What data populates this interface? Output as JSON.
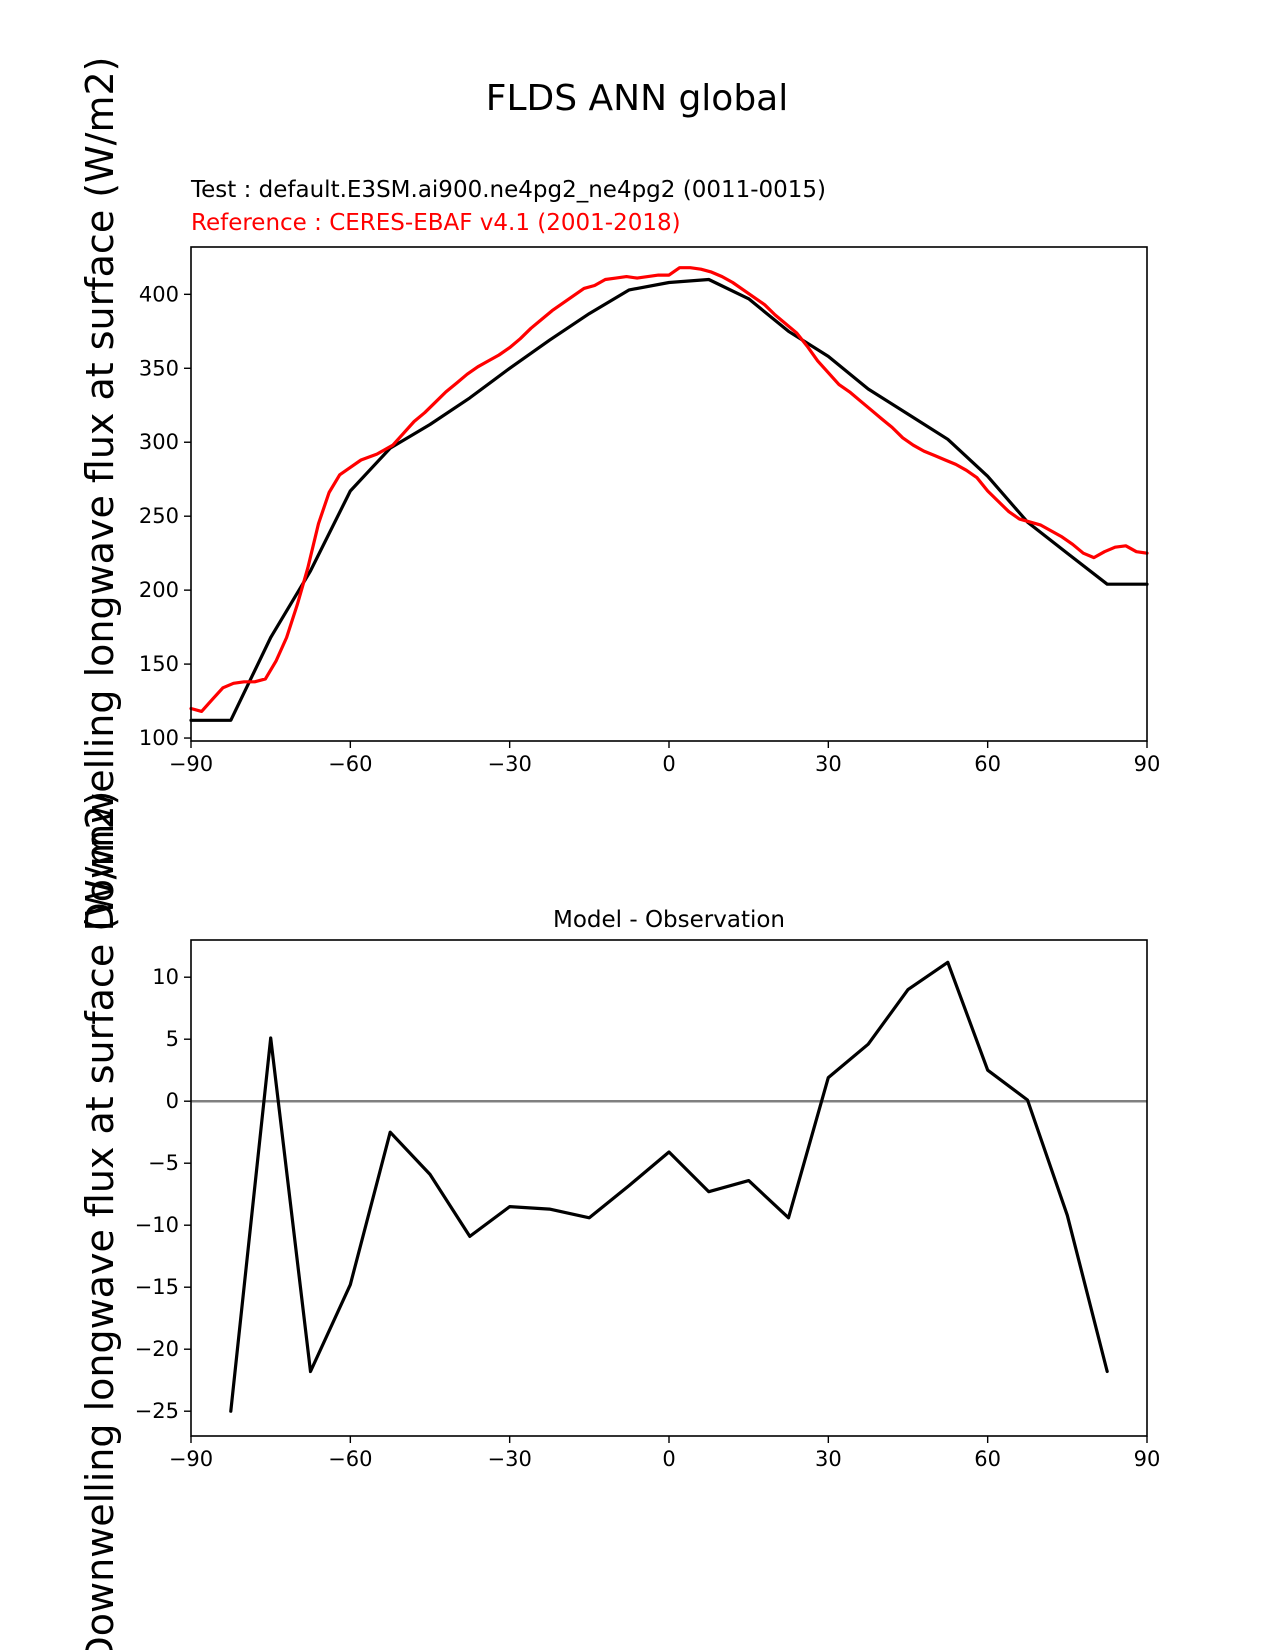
{
  "figure": {
    "title": "FLDS ANN global"
  },
  "chart_data": [
    {
      "type": "line",
      "test_label": "Test : default.E3SM.ai900.ne4pg2_ne4pg2 (0011-0015)",
      "reference_label": "Reference : CERES-EBAF v4.1 (2001-2018)",
      "ylabel": "Downwelling longwave flux at surface (W/m2)",
      "xlim": [
        -90,
        90
      ],
      "ylim": [
        98,
        432
      ],
      "xticks": [
        -90,
        -60,
        -30,
        0,
        30,
        60,
        90
      ],
      "xtick_labels": [
        "−90",
        "−60",
        "−30",
        "0",
        "30",
        "60",
        "90"
      ],
      "yticks": [
        100,
        150,
        200,
        250,
        300,
        350,
        400
      ],
      "ytick_labels": [
        "100",
        "150",
        "200",
        "250",
        "300",
        "350",
        "400"
      ],
      "grid": false,
      "series": [
        {
          "color": "#000000",
          "x": [
            -90,
            -82.5,
            -75,
            -67.5,
            -60,
            -52.5,
            -45,
            -37.5,
            -30,
            -22.5,
            -15,
            -7.5,
            0,
            7.5,
            15,
            22.5,
            30,
            37.5,
            45,
            52.5,
            60,
            67.5,
            75,
            82.5,
            90
          ],
          "y": [
            112,
            112,
            168,
            213,
            267,
            296,
            312,
            330,
            350,
            369,
            387,
            403,
            408,
            410,
            397,
            375,
            358,
            336,
            319,
            302,
            277,
            246,
            225,
            204,
            204
          ]
        },
        {
          "color": "#ff0000",
          "x": [
            -90,
            -88,
            -86,
            -84,
            -82,
            -80,
            -78,
            -76,
            -74,
            -72,
            -70,
            -68,
            -66,
            -64,
            -62,
            -60,
            -58,
            -55,
            -52,
            -50,
            -48,
            -46,
            -44,
            -42,
            -40,
            -38,
            -36,
            -34,
            -32,
            -30,
            -28,
            -26,
            -24,
            -22,
            -20,
            -18,
            -16,
            -14,
            -12,
            -10,
            -8,
            -6,
            -4,
            -2,
            0,
            2,
            4,
            6,
            8,
            10,
            12,
            14,
            16,
            18,
            20,
            22,
            24,
            26,
            28,
            30,
            32,
            34,
            36,
            38,
            40,
            42,
            44,
            46,
            48,
            50,
            52,
            54,
            56,
            58,
            60,
            62,
            64,
            66,
            68,
            70,
            72,
            74,
            76,
            78,
            80,
            82,
            84,
            86,
            88,
            90
          ],
          "y": [
            120,
            118,
            126,
            134,
            137,
            138,
            138,
            140,
            152,
            168,
            190,
            215,
            245,
            266,
            278,
            283,
            288,
            292,
            298,
            306,
            314,
            320,
            327,
            334,
            340,
            346,
            351,
            355,
            359,
            364,
            370,
            377,
            383,
            389,
            394,
            399,
            404,
            406,
            410,
            411,
            412,
            411,
            412,
            413,
            413,
            418,
            418,
            417,
            415,
            412,
            408,
            403,
            398,
            393,
            386,
            380,
            374,
            365,
            355,
            347,
            339,
            334,
            328,
            322,
            316,
            310,
            303,
            298,
            294,
            291,
            288,
            285,
            281,
            276,
            267,
            260,
            253,
            248,
            246,
            244,
            240,
            236,
            231,
            225,
            222,
            226,
            229,
            230,
            226,
            225
          ]
        }
      ]
    },
    {
      "type": "line",
      "title": "Model - Observation",
      "ylabel": "Downwelling longwave flux at surface (W/m2)",
      "xlim": [
        -90,
        90
      ],
      "ylim": [
        -27,
        13
      ],
      "xticks": [
        -90,
        -60,
        -30,
        0,
        30,
        60,
        90
      ],
      "xtick_labels": [
        "−90",
        "−60",
        "−30",
        "0",
        "30",
        "60",
        "90"
      ],
      "yticks": [
        -25,
        -20,
        -15,
        -10,
        -5,
        0,
        5,
        10
      ],
      "ytick_labels": [
        "−25",
        "−20",
        "−15",
        "−10",
        "−5",
        "0",
        "5",
        "10"
      ],
      "grid": false,
      "zero_line": 0,
      "series": [
        {
          "color": "#000000",
          "x": [
            -82.5,
            -75,
            -67.5,
            -60,
            -52.5,
            -45,
            -37.5,
            -30,
            -22.5,
            -15,
            -7.5,
            0,
            7.5,
            15,
            22.5,
            30,
            37.5,
            45,
            52.5,
            60,
            67.5,
            75,
            82.5
          ],
          "y": [
            -25,
            5.1,
            -21.8,
            -14.8,
            -2.5,
            -5.9,
            -10.9,
            -8.5,
            -8.7,
            -9.4,
            -6.8,
            -4.1,
            -7.3,
            -6.4,
            -9.4,
            1.9,
            4.6,
            9.0,
            11.2,
            2.5,
            0.1,
            -9.2,
            -21.8
          ]
        }
      ]
    }
  ]
}
